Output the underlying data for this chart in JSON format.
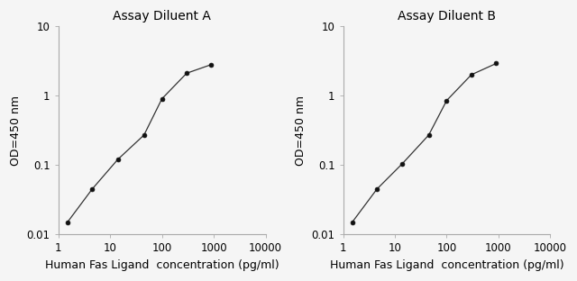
{
  "title_A": "Assay Diluent A",
  "title_B": "Assay Diluent B",
  "xlabel": "Human Fas Ligand  concentration (pg/ml)",
  "ylabel": "OD=450 nm",
  "x_A": [
    1.5,
    4.5,
    14,
    45,
    100,
    300,
    900
  ],
  "y_A": [
    0.015,
    0.045,
    0.12,
    0.27,
    0.9,
    2.1,
    2.8
  ],
  "x_B": [
    1.5,
    4.5,
    14,
    45,
    100,
    300,
    900
  ],
  "y_B": [
    0.015,
    0.045,
    0.105,
    0.27,
    0.85,
    2.0,
    2.9
  ],
  "xlim": [
    1,
    10000
  ],
  "ylim": [
    0.01,
    10
  ],
  "x_ticks": [
    1,
    10,
    100,
    1000,
    10000
  ],
  "x_tick_labels": [
    "1",
    "10",
    "100",
    "1000",
    "10000"
  ],
  "y_ticks": [
    0.01,
    0.1,
    1,
    10
  ],
  "y_tick_labels": [
    "0.01",
    "0.1",
    "1",
    "10"
  ],
  "line_color": "#333333",
  "marker_color": "#111111",
  "bg_color": "#f5f5f5",
  "title_fontsize": 10,
  "label_fontsize": 9,
  "tick_fontsize": 8.5
}
